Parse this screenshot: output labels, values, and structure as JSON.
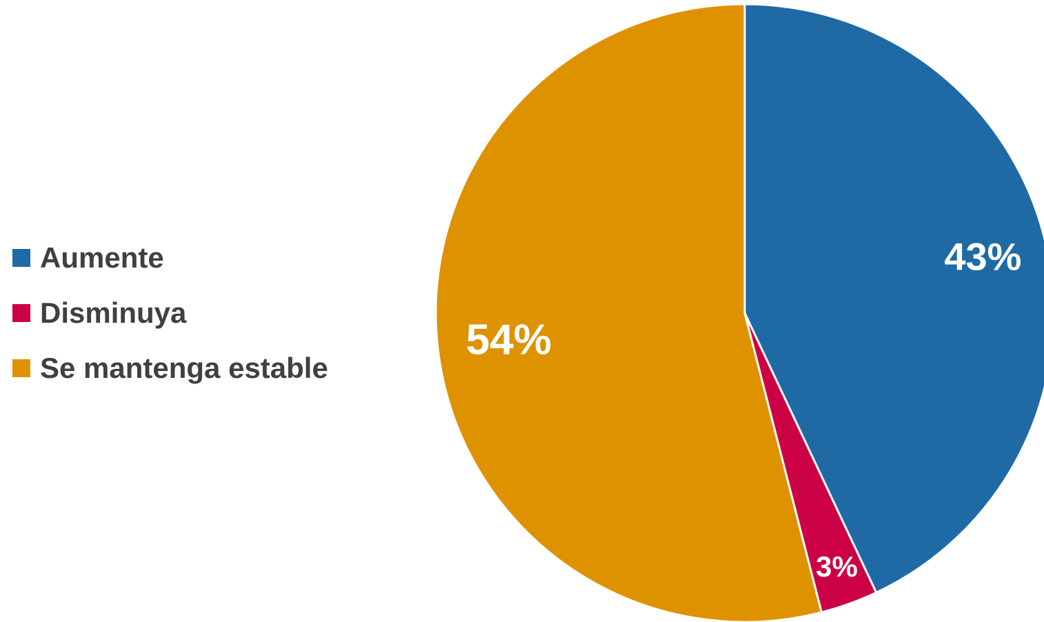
{
  "chart_data": {
    "type": "pie",
    "categories": [
      "Aumente",
      "Disminuya",
      "Se mantenga estable"
    ],
    "values": [
      43,
      3,
      54
    ],
    "data_labels": [
      "43%",
      "3%",
      "54%"
    ],
    "colors": [
      "#1F6AA5",
      "#CC0044",
      "#DF9200"
    ],
    "start_angle_deg": 0,
    "direction": "clockwise",
    "legend_placement": "left",
    "title": ""
  }
}
